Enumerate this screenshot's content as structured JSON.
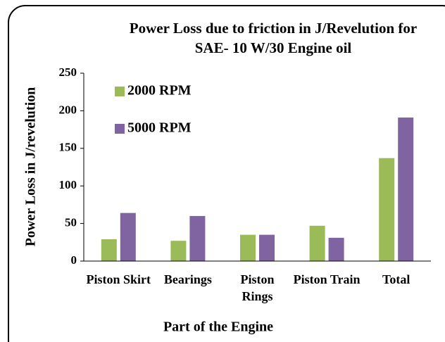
{
  "chart_data": {
    "type": "bar",
    "title": "Power Loss due to friction in J/Revelution for SAE- 10 W/30 Engine oil",
    "x_label": "Part of the Engine",
    "y_label": "Power Loss in J/revelution",
    "categories": [
      "Piston Skirt",
      "Bearings",
      "Piston Rings",
      "Piston Train",
      "Total"
    ],
    "series": [
      {
        "name": "2000 RPM",
        "color": "#9bbb59",
        "values": [
          29,
          27,
          35,
          47,
          137
        ]
      },
      {
        "name": "5000 RPM",
        "color": "#8064a2",
        "values": [
          64,
          60,
          35,
          31,
          191
        ]
      }
    ],
    "ylim": [
      0,
      250
    ],
    "yticks": [
      0,
      50,
      100,
      150,
      200,
      250
    ],
    "grid": false,
    "legend": "top-left"
  }
}
